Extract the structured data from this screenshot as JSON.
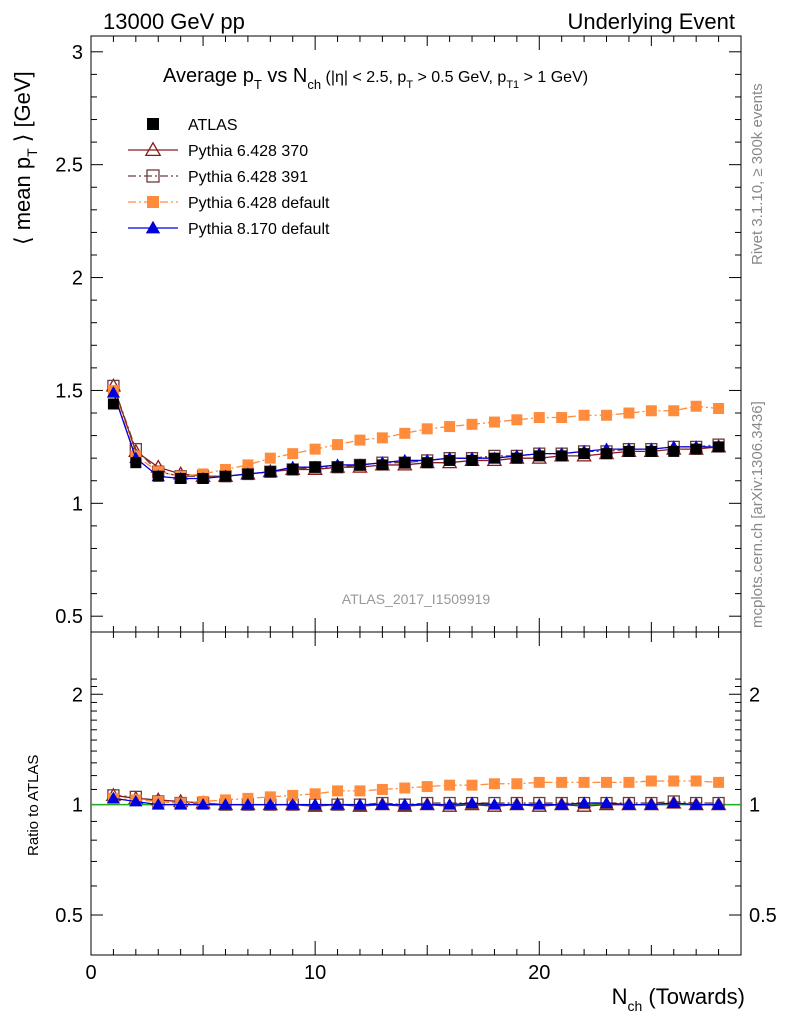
{
  "header": {
    "left": "13000 GeV pp",
    "right": "Underlying Event"
  },
  "side_labels": {
    "rivet": "Rivet 3.1.10, ≥ 300k events",
    "mcplots": "mcplots.cern.ch [arXiv:1306.3436]"
  },
  "watermark": "ATLAS_2017_I1509919",
  "title": {
    "main": "Average p",
    "main_sub": "T",
    "vs": " vs N",
    "vs_sub": "ch",
    "cuts_1": " (|η| < 2.5, p",
    "cuts_1_sub": "T",
    "cuts_2": " > 0.5 GeV, p",
    "cuts_2_sub": "T1",
    "cuts_3": " > 1 GeV)"
  },
  "axes": {
    "ylabel_upper_a": "⟨ mean p",
    "ylabel_upper_sub": "T",
    "ylabel_upper_b": " ⟩ [GeV]",
    "ylabel_lower": "Ratio to ATLAS",
    "xlabel_a": "N",
    "xlabel_sub": "ch",
    "xlabel_b": " (Towards)",
    "x_ticks": [
      "0",
      "10",
      "20"
    ],
    "y_upper_ticks": [
      "0.5",
      "1",
      "1.5",
      "2",
      "2.5",
      "3"
    ],
    "y_lower_ticks_left": [
      "0.5",
      "1",
      "2"
    ],
    "y_lower_ticks_right": [
      "0.5",
      "1",
      "2"
    ]
  },
  "colors": {
    "atlas": "#000000",
    "p6_370": "#8b1a1a",
    "p6_391": "#6e3b3b",
    "p6_default": "#ff8c3c",
    "p8_default": "#0000dd",
    "ratio_ref": "#22aa22"
  },
  "chart_data": [
    {
      "type": "line",
      "panel": "main",
      "xlim": [
        0,
        29
      ],
      "ylim": [
        0.43,
        3.07
      ],
      "x": [
        1,
        2,
        3,
        4,
        5,
        6,
        7,
        8,
        9,
        10,
        11,
        12,
        13,
        14,
        15,
        16,
        17,
        18,
        19,
        20,
        21,
        22,
        23,
        24,
        25,
        26,
        27,
        28
      ],
      "series": [
        {
          "name": "ATLAS",
          "key": "atlas",
          "marker": "square-filled",
          "line": "none",
          "values": [
            1.44,
            1.18,
            1.12,
            1.11,
            1.11,
            1.12,
            1.13,
            1.14,
            1.15,
            1.16,
            1.16,
            1.17,
            1.17,
            1.18,
            1.18,
            1.19,
            1.19,
            1.2,
            1.2,
            1.21,
            1.21,
            1.22,
            1.22,
            1.23,
            1.23,
            1.23,
            1.24,
            1.25
          ]
        },
        {
          "name": "Pythia 6.428 370",
          "key": "p6_370",
          "marker": "triangle-open",
          "line": "solid",
          "values": [
            1.52,
            1.23,
            1.16,
            1.13,
            1.12,
            1.12,
            1.13,
            1.14,
            1.15,
            1.15,
            1.16,
            1.16,
            1.17,
            1.17,
            1.18,
            1.18,
            1.19,
            1.19,
            1.2,
            1.2,
            1.21,
            1.21,
            1.22,
            1.23,
            1.23,
            1.24,
            1.24,
            1.25
          ]
        },
        {
          "name": "Pythia 6.428 391",
          "key": "p6_391",
          "marker": "square-open",
          "line": "dashdot",
          "values": [
            1.52,
            1.24,
            1.14,
            1.12,
            1.12,
            1.12,
            1.13,
            1.14,
            1.15,
            1.16,
            1.16,
            1.17,
            1.18,
            1.18,
            1.19,
            1.2,
            1.2,
            1.21,
            1.21,
            1.22,
            1.22,
            1.23,
            1.23,
            1.24,
            1.24,
            1.25,
            1.25,
            1.26
          ]
        },
        {
          "name": "Pythia 6.428 default",
          "key": "p6_default",
          "marker": "square-filled",
          "line": "dashdot",
          "values": [
            1.5,
            1.21,
            1.14,
            1.12,
            1.13,
            1.15,
            1.17,
            1.2,
            1.22,
            1.24,
            1.26,
            1.28,
            1.29,
            1.31,
            1.33,
            1.34,
            1.35,
            1.36,
            1.37,
            1.38,
            1.38,
            1.39,
            1.39,
            1.4,
            1.41,
            1.41,
            1.43,
            1.42
          ]
        },
        {
          "name": "Pythia 8.170 default",
          "key": "p8_default",
          "marker": "triangle-filled",
          "line": "solid",
          "values": [
            1.49,
            1.2,
            1.12,
            1.11,
            1.11,
            1.12,
            1.13,
            1.14,
            1.16,
            1.16,
            1.17,
            1.17,
            1.18,
            1.19,
            1.19,
            1.2,
            1.2,
            1.2,
            1.21,
            1.22,
            1.22,
            1.23,
            1.24,
            1.24,
            1.24,
            1.25,
            1.25,
            1.25
          ]
        }
      ]
    },
    {
      "type": "line",
      "panel": "ratio",
      "xlim": [
        0,
        29
      ],
      "ylim": [
        0.5,
        2.3
      ],
      "scale": "log",
      "reference": 1,
      "x": [
        1,
        2,
        3,
        4,
        5,
        6,
        7,
        8,
        9,
        10,
        11,
        12,
        13,
        14,
        15,
        16,
        17,
        18,
        19,
        20,
        21,
        22,
        23,
        24,
        25,
        26,
        27,
        28
      ],
      "series": [
        {
          "name": "Pythia 6.428 370",
          "key": "p6_370",
          "marker": "triangle-open",
          "line": "solid",
          "values": [
            1.06,
            1.04,
            1.03,
            1.02,
            1.01,
            1.0,
            1.0,
            1.0,
            1.0,
            0.99,
            1.0,
            0.99,
            1.0,
            0.99,
            1.0,
            0.99,
            1.0,
            0.99,
            1.0,
            0.99,
            1.0,
            0.99,
            1.0,
            1.0,
            1.0,
            1.01,
            1.0,
            1.0
          ]
        },
        {
          "name": "Pythia 6.428 391",
          "key": "p6_391",
          "marker": "square-open",
          "line": "dashdot",
          "values": [
            1.06,
            1.05,
            1.02,
            1.01,
            1.01,
            1.0,
            1.0,
            1.0,
            1.0,
            1.0,
            1.0,
            1.0,
            1.01,
            1.0,
            1.01,
            1.01,
            1.01,
            1.01,
            1.01,
            1.01,
            1.01,
            1.01,
            1.01,
            1.01,
            1.01,
            1.02,
            1.01,
            1.01
          ]
        },
        {
          "name": "Pythia 6.428 default",
          "key": "p6_default",
          "marker": "square-filled",
          "line": "dashdot",
          "values": [
            1.04,
            1.03,
            1.02,
            1.01,
            1.02,
            1.03,
            1.04,
            1.05,
            1.06,
            1.07,
            1.09,
            1.09,
            1.1,
            1.11,
            1.12,
            1.13,
            1.13,
            1.14,
            1.14,
            1.15,
            1.15,
            1.15,
            1.15,
            1.15,
            1.16,
            1.16,
            1.16,
            1.15
          ]
        },
        {
          "name": "Pythia 8.170 default",
          "key": "p8_default",
          "marker": "triangle-filled",
          "line": "solid",
          "values": [
            1.04,
            1.02,
            1.0,
            1.0,
            1.0,
            1.0,
            1.0,
            1.0,
            1.0,
            1.0,
            1.0,
            1.0,
            1.0,
            1.0,
            1.0,
            1.0,
            1.01,
            1.0,
            1.0,
            1.0,
            1.0,
            1.01,
            1.01,
            1.0,
            1.0,
            1.01,
            1.0,
            1.0
          ]
        }
      ]
    }
  ]
}
